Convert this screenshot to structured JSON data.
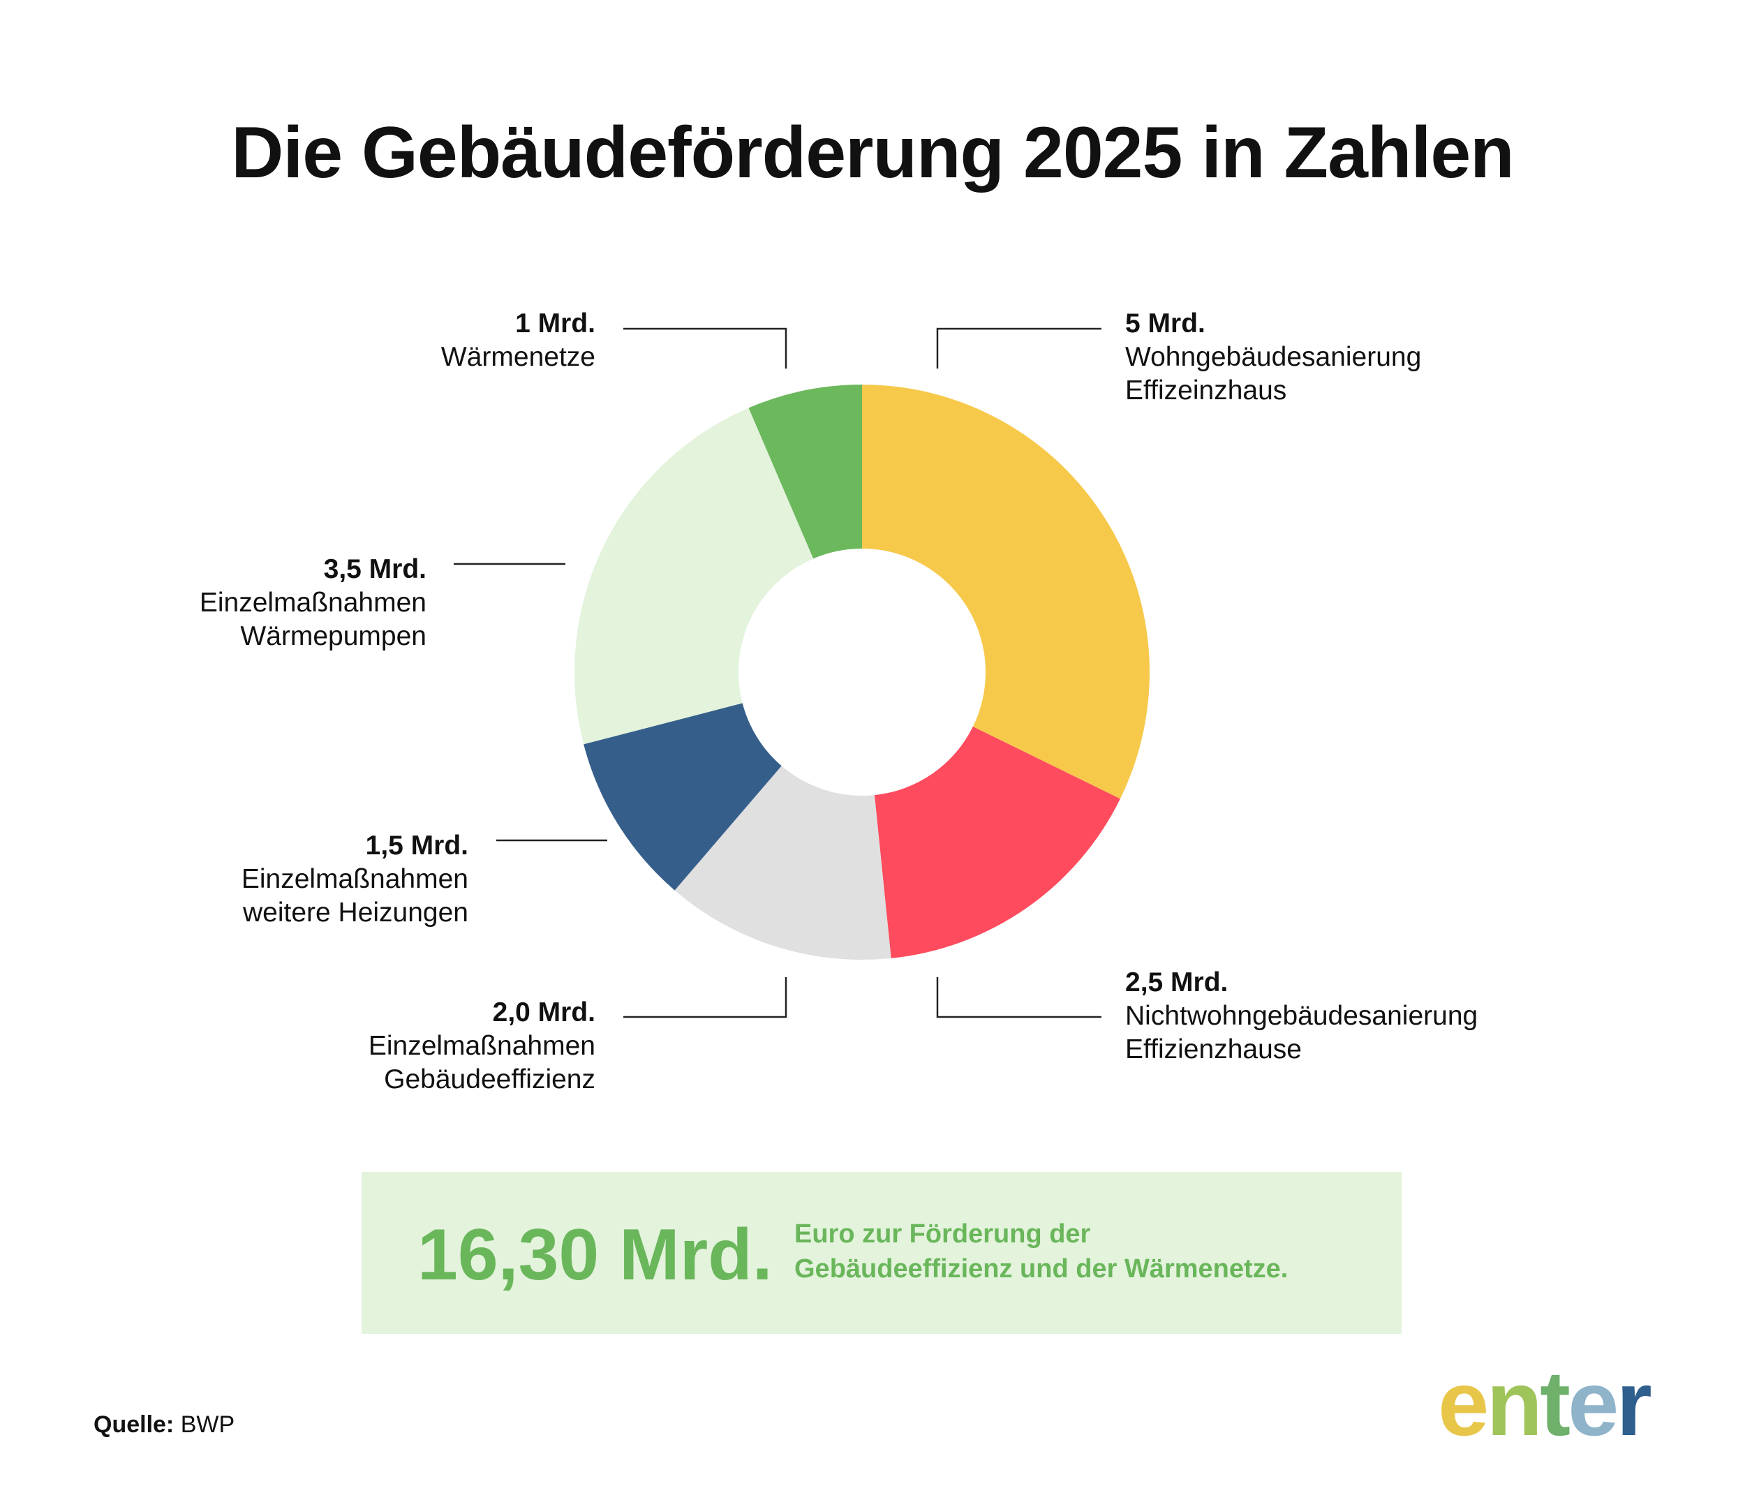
{
  "title": "Die Gebäudeförderung 2025 in Zahlen",
  "chart_data": {
    "type": "pie",
    "subtype": "donut",
    "unit": "Mrd.",
    "slices": [
      {
        "value_label": "5 Mrd.",
        "value": 5,
        "name_lines": [
          "Wohngebäudesanierung",
          "Effizeinzhaus"
        ],
        "color": "#f6c94b"
      },
      {
        "value_label": "2,5 Mrd.",
        "value": 2.5,
        "name_lines": [
          "Nichtwohngebäudesanierung",
          "Effizienzhause"
        ],
        "color": "#ff4b5e"
      },
      {
        "value_label": "2,0 Mrd.",
        "value": 2.0,
        "name_lines": [
          "Einzelmaßnahmen",
          "Gebäudeeffizienz"
        ],
        "color": "#e0e0e0"
      },
      {
        "value_label": "1,5 Mrd.",
        "value": 1.5,
        "name_lines": [
          "Einzelmaßnahmen",
          "weitere Heizungen"
        ],
        "color": "#355f8a"
      },
      {
        "value_label": "3,5 Mrd.",
        "value": 3.5,
        "name_lines": [
          "Einzelmaßnahmen",
          "Wärmepumpen"
        ],
        "color": "#e3f3dc"
      },
      {
        "value_label": "1 Mrd.",
        "value": 1,
        "name_lines": [
          "Wärmenetze"
        ],
        "color": "#6cb85c"
      }
    ]
  },
  "total": {
    "value": "16,30 Mrd.",
    "text_lines": [
      "Euro zur Förderung der",
      "Gebäudeeffizienz und der Wärmenetze."
    ]
  },
  "source": {
    "label": "Quelle:",
    "value": "BWP"
  },
  "logo": {
    "letters": [
      "e",
      "n",
      "t",
      "e",
      "r"
    ],
    "colors": [
      "#e8c64a",
      "#9fc45a",
      "#6fb06b",
      "#8fb3c9",
      "#2f5f8d"
    ]
  },
  "colors": {
    "line": "#222222",
    "total_accent": "#6ab65b",
    "total_bg": "#e3f3dc"
  }
}
